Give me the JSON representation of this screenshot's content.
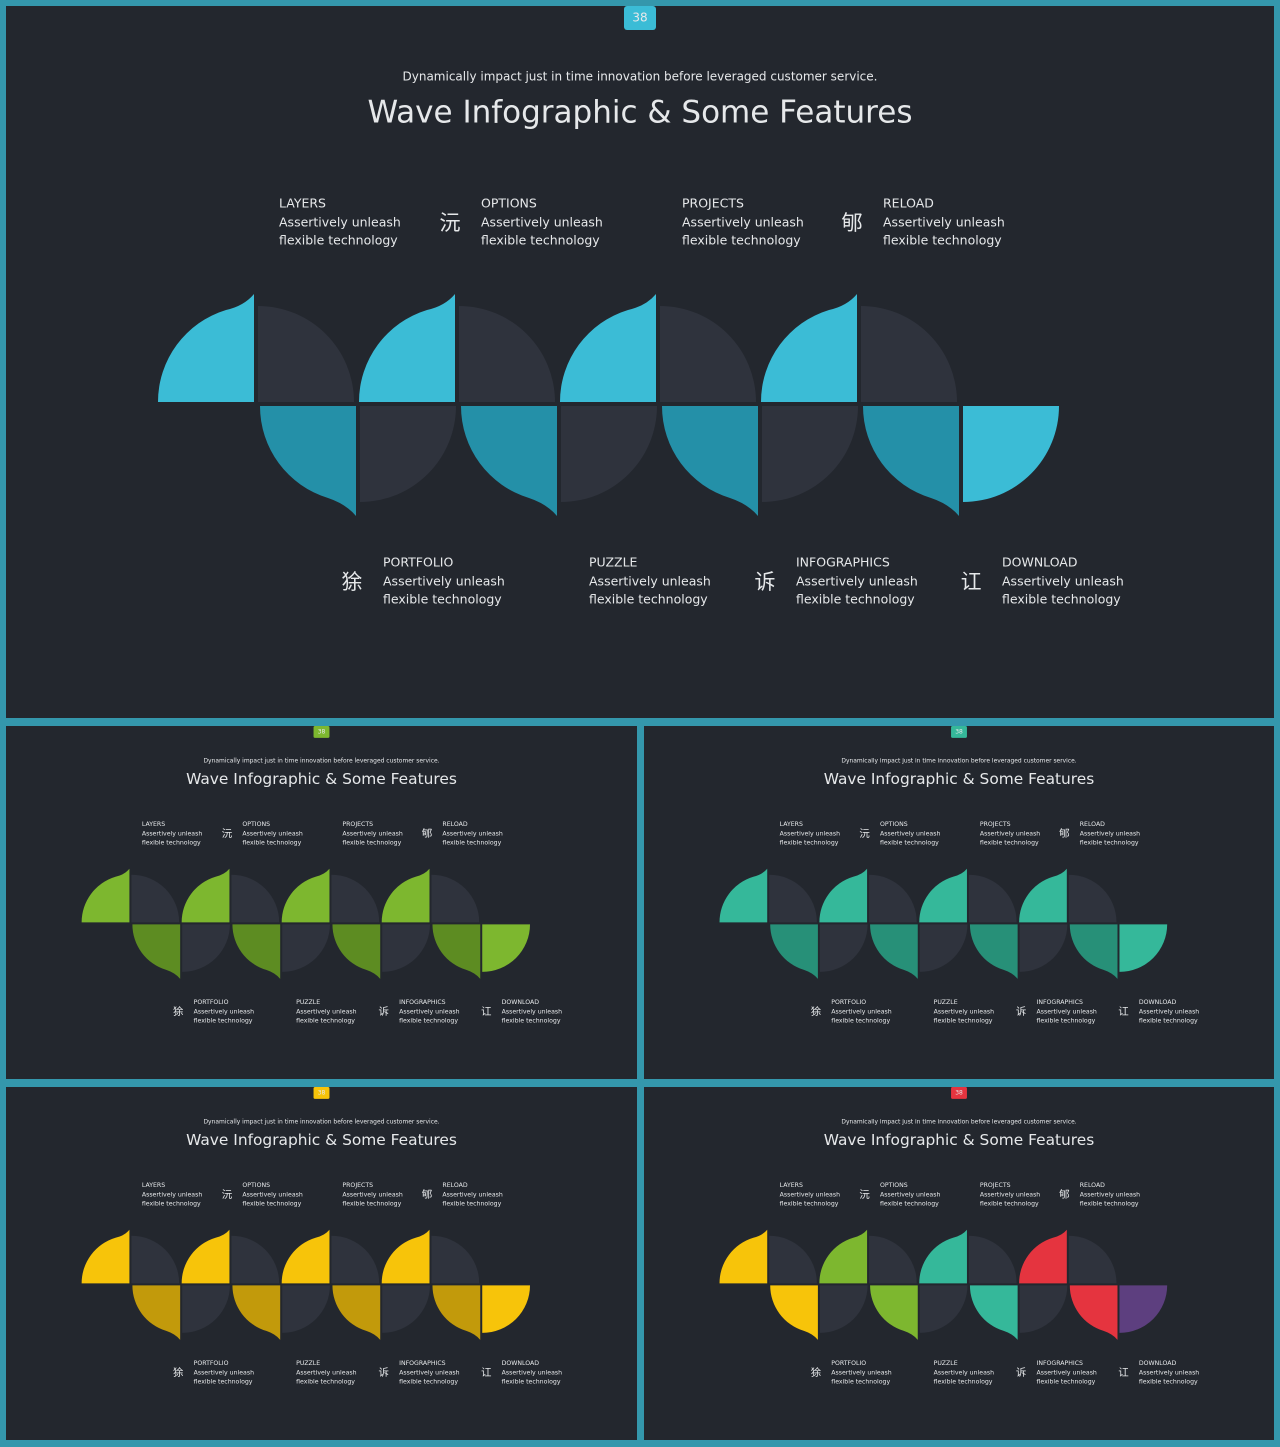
{
  "slide": {
    "page_number": "38",
    "subtitle": "Dynamically impact just in time innovation  before leveraged customer service.",
    "title": "Wave Infographic & Some Features",
    "features": [
      {
        "label": "LAYERS",
        "text": [
          "Assertively unleash",
          "flexible technology"
        ]
      },
      {
        "label": "OPTIONS",
        "icon": "沅",
        "text": [
          "Assertively unleash",
          "flexible technology"
        ]
      },
      {
        "label": "PROJECTS",
        "text": [
          "Assertively unleash",
          "flexible technology"
        ]
      },
      {
        "label": "RELOAD",
        "icon": "郇",
        "text": [
          "Assertively unleash",
          "flexible technology"
        ]
      },
      {
        "label": "PORTFOLIO",
        "icon": "狳",
        "text": [
          "Assertively unleash",
          "flexible technology"
        ]
      },
      {
        "label": "PUZZLE",
        "text": [
          "Assertively unleash",
          "flexible technology"
        ]
      },
      {
        "label": "INFOGRAPHICS",
        "icon": "诉",
        "text": [
          "Assertively unleash",
          "flexible technology"
        ]
      },
      {
        "label": "DOWNLOAD",
        "icon": "讧",
        "text": [
          "Assertively unleash",
          "flexible technology"
        ]
      }
    ]
  },
  "variants": [
    {
      "badge_color": "#3bbcd6",
      "unit_colors": [
        [
          "#3bbcd6",
          "#2490a8"
        ],
        [
          "#3bbcd6",
          "#2490a8"
        ],
        [
          "#3bbcd6",
          "#2490a8"
        ],
        [
          "#3bbcd6",
          "#2490a8"
        ]
      ],
      "end_color": "#3bbcd6"
    },
    {
      "badge_color": "#7db72f",
      "unit_colors": [
        [
          "#7db72f",
          "#5d8c22"
        ],
        [
          "#7db72f",
          "#5d8c22"
        ],
        [
          "#7db72f",
          "#5d8c22"
        ],
        [
          "#7db72f",
          "#5d8c22"
        ]
      ],
      "end_color": "#7db72f"
    },
    {
      "badge_color": "#35b89a",
      "unit_colors": [
        [
          "#35b89a",
          "#279078"
        ],
        [
          "#35b89a",
          "#279078"
        ],
        [
          "#35b89a",
          "#279078"
        ],
        [
          "#35b89a",
          "#279078"
        ]
      ],
      "end_color": "#35b89a"
    },
    {
      "badge_color": "#f7c40a",
      "unit_colors": [
        [
          "#f7c40a",
          "#c29a0b"
        ],
        [
          "#f7c40a",
          "#c29a0b"
        ],
        [
          "#f7c40a",
          "#c29a0b"
        ],
        [
          "#f7c40a",
          "#c29a0b"
        ]
      ],
      "end_color": "#f7c40a"
    },
    {
      "badge_color": "#e5343f",
      "unit_colors": [
        [
          "#f7c40a",
          "#f7c40a"
        ],
        [
          "#7db72f",
          "#7db72f"
        ],
        [
          "#35b89a",
          "#35b89a"
        ],
        [
          "#e5343f",
          "#e5343f"
        ]
      ],
      "end_color": "#5d3f7f"
    }
  ]
}
